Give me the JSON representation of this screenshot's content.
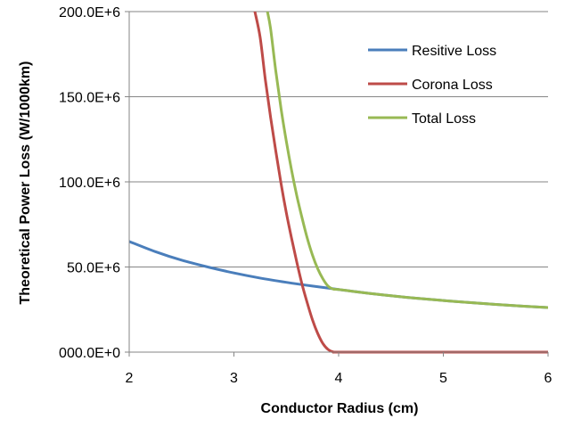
{
  "chart_data": {
    "type": "line",
    "title": "",
    "xlabel": "Conductor  Radius (cm)",
    "ylabel": "Theoretical  Power Loss (W/1000km)",
    "xlim": [
      2,
      6
    ],
    "ylim": [
      0,
      200000000
    ],
    "x_ticks": [
      2,
      3,
      4,
      5,
      6
    ],
    "x_tick_labels": [
      "2",
      "3",
      "4",
      "5",
      "6"
    ],
    "y_ticks": [
      0,
      50000000,
      100000000,
      150000000,
      200000000
    ],
    "y_tick_labels": [
      "000.0E+0",
      "50.0E+6",
      "100.0E+6",
      "150.0E+6",
      "200.0E+6"
    ],
    "grid": {
      "horizontal": true,
      "vertical": false
    },
    "legend_position": "top-right",
    "series": [
      {
        "name": "Resitive Loss",
        "color": "#4a7ebb",
        "x": [
          2.0,
          2.25,
          2.5,
          2.75,
          3.0,
          3.25,
          3.5,
          3.75,
          4.0,
          4.25,
          4.5,
          4.75,
          5.0,
          5.25,
          5.5,
          5.75,
          6.0
        ],
        "y": [
          65000000,
          59000000,
          54000000,
          50000000,
          46500000,
          43500000,
          41000000,
          38800000,
          36800000,
          34800000,
          33100000,
          31600000,
          30300000,
          29100000,
          28000000,
          27000000,
          26200000
        ]
      },
      {
        "name": "Corona Loss",
        "color": "#be4b48",
        "x": [
          3.2,
          3.25,
          3.3,
          3.35,
          3.4,
          3.45,
          3.5,
          3.55,
          3.6,
          3.65,
          3.7,
          3.75,
          3.8,
          3.85,
          3.9,
          3.95,
          4.0,
          4.5,
          5.0,
          5.5,
          6.0
        ],
        "y": [
          200000000,
          185000000,
          160000000,
          138000000,
          118000000,
          99000000,
          82000000,
          67000000,
          53000000,
          40000000,
          29000000,
          19000000,
          11000000,
          5000000,
          1500000,
          100000,
          0,
          0,
          0,
          0,
          0
        ]
      },
      {
        "name": "Total Loss",
        "color": "#98b954",
        "x": [
          3.32,
          3.35,
          3.4,
          3.45,
          3.5,
          3.55,
          3.6,
          3.65,
          3.7,
          3.75,
          3.8,
          3.85,
          3.9,
          3.95,
          4.0,
          4.25,
          4.5,
          4.75,
          5.0,
          5.25,
          5.5,
          5.75,
          6.0
        ],
        "y": [
          200000000,
          190000000,
          165000000,
          143000000,
          124000000,
          107000000,
          92000000,
          79000000,
          67000000,
          57000000,
          49000000,
          43000000,
          38700000,
          37000000,
          36800000,
          34800000,
          33100000,
          31600000,
          30300000,
          29100000,
          28000000,
          27000000,
          26200000
        ]
      }
    ]
  }
}
